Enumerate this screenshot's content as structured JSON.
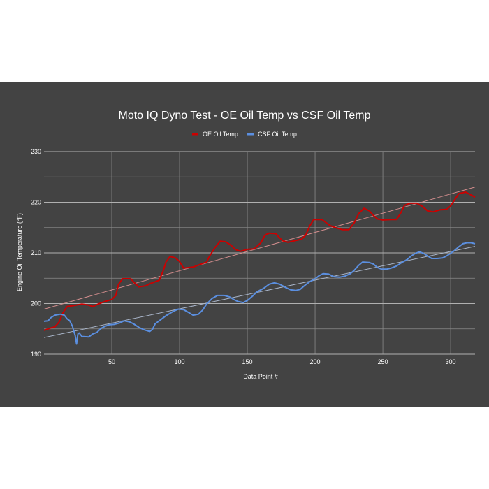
{
  "chart_data": {
    "type": "line",
    "title": "Moto IQ Dyno Test - OE Oil Temp vs CSF Oil Temp",
    "xlabel": "Data Point #",
    "ylabel": "Engine Oil Temperature (°F)",
    "xlim": [
      0,
      318
    ],
    "ylim": [
      190,
      230
    ],
    "x_ticks": [
      50,
      100,
      150,
      200,
      250,
      300
    ],
    "y_ticks": [
      190,
      200,
      210,
      220,
      230
    ],
    "y_tick_labels": [
      "190",
      "200",
      "210",
      "220",
      "230"
    ],
    "x_tick_labels": [
      "50",
      "100",
      "150",
      "200",
      "250",
      "300"
    ],
    "grid": true,
    "legend_position": "top-center",
    "series": [
      {
        "name": "OE Oil Temp",
        "color": "#cc0000",
        "points": [
          [
            0,
            194.7
          ],
          [
            4,
            195.1
          ],
          [
            8,
            195.4
          ],
          [
            11,
            196.3
          ],
          [
            14,
            198.2
          ],
          [
            17,
            199.4
          ],
          [
            22,
            199.6
          ],
          [
            28,
            199.9
          ],
          [
            33,
            199.7
          ],
          [
            36,
            199.4
          ],
          [
            40,
            199.9
          ],
          [
            45,
            200.4
          ],
          [
            50,
            200.8
          ],
          [
            53,
            201.6
          ],
          [
            55,
            203.8
          ],
          [
            58,
            204.9
          ],
          [
            64,
            204.9
          ],
          [
            67,
            204.0
          ],
          [
            70,
            203.3
          ],
          [
            75,
            203.5
          ],
          [
            78,
            203.9
          ],
          [
            85,
            204.6
          ],
          [
            88,
            206.5
          ],
          [
            90,
            208.2
          ],
          [
            93,
            209.3
          ],
          [
            97,
            209.0
          ],
          [
            100,
            208.3
          ],
          [
            103,
            207.0
          ],
          [
            110,
            207.2
          ],
          [
            115,
            207.7
          ],
          [
            120,
            208.2
          ],
          [
            122,
            209.3
          ],
          [
            126,
            211.0
          ],
          [
            130,
            212.3
          ],
          [
            134,
            212.2
          ],
          [
            138,
            211.5
          ],
          [
            141,
            210.7
          ],
          [
            145,
            210.3
          ],
          [
            150,
            210.7
          ],
          [
            155,
            210.8
          ],
          [
            160,
            212.0
          ],
          [
            163,
            213.5
          ],
          [
            166,
            213.9
          ],
          [
            171,
            213.8
          ],
          [
            173,
            213.2
          ],
          [
            176,
            212.4
          ],
          [
            180,
            212.1
          ],
          [
            185,
            212.4
          ],
          [
            190,
            212.7
          ],
          [
            193,
            213.5
          ],
          [
            196,
            215.3
          ],
          [
            199,
            216.6
          ],
          [
            205,
            216.6
          ],
          [
            208,
            216.0
          ],
          [
            211,
            215.4
          ],
          [
            215,
            215.0
          ],
          [
            220,
            214.6
          ],
          [
            225,
            214.6
          ],
          [
            229,
            216.0
          ],
          [
            232,
            217.7
          ],
          [
            236,
            218.8
          ],
          [
            240,
            218.3
          ],
          [
            243,
            217.4
          ],
          [
            246,
            216.7
          ],
          [
            250,
            216.5
          ],
          [
            256,
            216.6
          ],
          [
            260,
            216.6
          ],
          [
            263,
            217.8
          ],
          [
            266,
            219.4
          ],
          [
            270,
            219.8
          ],
          [
            275,
            219.8
          ],
          [
            279,
            219.2
          ],
          [
            283,
            218.3
          ],
          [
            287,
            218.1
          ],
          [
            292,
            218.5
          ],
          [
            297,
            218.6
          ],
          [
            300,
            219.3
          ],
          [
            303,
            220.5
          ],
          [
            306,
            221.7
          ],
          [
            311,
            222.0
          ],
          [
            314,
            221.6
          ],
          [
            318,
            221.0
          ]
        ],
        "trendline": [
          [
            0,
            198.9
          ],
          [
            318,
            223.0
          ]
        ]
      },
      {
        "name": "CSF Oil Temp",
        "color": "#5b8fe0",
        "points": [
          [
            0,
            196.5
          ],
          [
            3,
            196.6
          ],
          [
            5,
            197.2
          ],
          [
            8,
            197.7
          ],
          [
            12,
            197.9
          ],
          [
            15,
            197.7
          ],
          [
            17,
            197.0
          ],
          [
            19,
            196.6
          ],
          [
            21,
            195.5
          ],
          [
            23,
            193.7
          ],
          [
            24,
            192.0
          ],
          [
            25,
            194.0
          ],
          [
            26,
            194.2
          ],
          [
            28,
            193.5
          ],
          [
            33,
            193.4
          ],
          [
            36,
            194.0
          ],
          [
            39,
            194.3
          ],
          [
            42,
            195.1
          ],
          [
            45,
            195.5
          ],
          [
            48,
            195.8
          ],
          [
            52,
            195.9
          ],
          [
            56,
            196.2
          ],
          [
            59,
            196.6
          ],
          [
            63,
            196.4
          ],
          [
            66,
            196.0
          ],
          [
            70,
            195.3
          ],
          [
            74,
            194.8
          ],
          [
            78,
            194.5
          ],
          [
            80,
            194.9
          ],
          [
            82,
            196.0
          ],
          [
            86,
            196.8
          ],
          [
            90,
            197.6
          ],
          [
            95,
            198.4
          ],
          [
            99,
            198.9
          ],
          [
            103,
            198.8
          ],
          [
            107,
            198.2
          ],
          [
            110,
            197.7
          ],
          [
            114,
            197.9
          ],
          [
            117,
            198.7
          ],
          [
            120,
            199.9
          ],
          [
            124,
            201.0
          ],
          [
            128,
            201.6
          ],
          [
            133,
            201.6
          ],
          [
            137,
            201.3
          ],
          [
            140,
            200.8
          ],
          [
            143,
            200.4
          ],
          [
            147,
            200.2
          ],
          [
            150,
            200.6
          ],
          [
            154,
            201.5
          ],
          [
            157,
            202.3
          ],
          [
            162,
            203.0
          ],
          [
            166,
            203.8
          ],
          [
            170,
            204.1
          ],
          [
            174,
            203.8
          ],
          [
            178,
            203.2
          ],
          [
            182,
            202.7
          ],
          [
            186,
            202.6
          ],
          [
            189,
            202.8
          ],
          [
            192,
            203.5
          ],
          [
            196,
            204.3
          ],
          [
            200,
            204.9
          ],
          [
            203,
            205.5
          ],
          [
            206,
            205.9
          ],
          [
            210,
            205.8
          ],
          [
            214,
            205.3
          ],
          [
            218,
            205.2
          ],
          [
            222,
            205.4
          ],
          [
            226,
            205.9
          ],
          [
            229,
            206.6
          ],
          [
            232,
            207.5
          ],
          [
            235,
            208.2
          ],
          [
            240,
            208.1
          ],
          [
            243,
            207.8
          ],
          [
            246,
            207.1
          ],
          [
            249,
            206.8
          ],
          [
            253,
            206.8
          ],
          [
            256,
            207.0
          ],
          [
            260,
            207.4
          ],
          [
            264,
            208.1
          ],
          [
            268,
            208.7
          ],
          [
            271,
            209.4
          ],
          [
            274,
            209.9
          ],
          [
            277,
            210.2
          ],
          [
            280,
            209.9
          ],
          [
            283,
            209.4
          ],
          [
            286,
            208.9
          ],
          [
            290,
            208.9
          ],
          [
            294,
            209.0
          ],
          [
            297,
            209.4
          ],
          [
            300,
            209.9
          ],
          [
            303,
            210.5
          ],
          [
            306,
            211.2
          ],
          [
            309,
            211.8
          ],
          [
            312,
            212.0
          ],
          [
            315,
            212.0
          ],
          [
            318,
            211.8
          ]
        ],
        "trendline": [
          [
            0,
            193.3
          ],
          [
            318,
            211.3
          ]
        ]
      }
    ]
  }
}
